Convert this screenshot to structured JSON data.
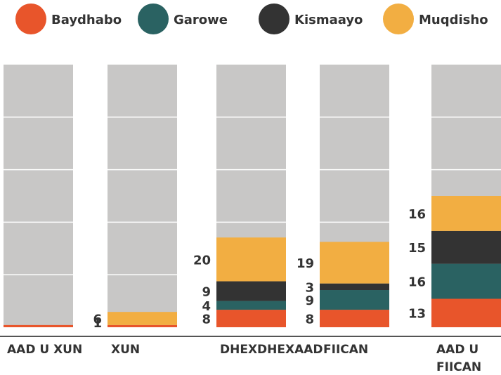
{
  "chart_data": {
    "type": "stacked_bar",
    "categories": [
      "AAD U XUN",
      "XUN",
      "DHEXDHEXAAD",
      "FIICAN",
      "AAD U FIICAN"
    ],
    "series": [
      {
        "name": "Baydhabo",
        "color": "#e8552b",
        "values": [
          1,
          1,
          8,
          8,
          13
        ],
        "value_labels": [
          null,
          1,
          8,
          8,
          13
        ]
      },
      {
        "name": "Garowe",
        "color": "#2a6262",
        "values": [
          0,
          0,
          4,
          9,
          16
        ],
        "value_labels": [
          null,
          null,
          4,
          9,
          16
        ]
      },
      {
        "name": "Kismaayo",
        "color": "#333333",
        "values": [
          0,
          0,
          9,
          3,
          15
        ],
        "value_labels": [
          null,
          null,
          9,
          3,
          15
        ]
      },
      {
        "name": "Muqdisho",
        "color": "#f2ae42",
        "values": [
          0,
          6,
          20,
          19,
          16
        ],
        "value_labels": [
          null,
          6,
          20,
          19,
          16
        ]
      }
    ],
    "ylim": [
      0,
      120
    ],
    "background_color": "#c8c7c6",
    "legend": "top"
  }
}
